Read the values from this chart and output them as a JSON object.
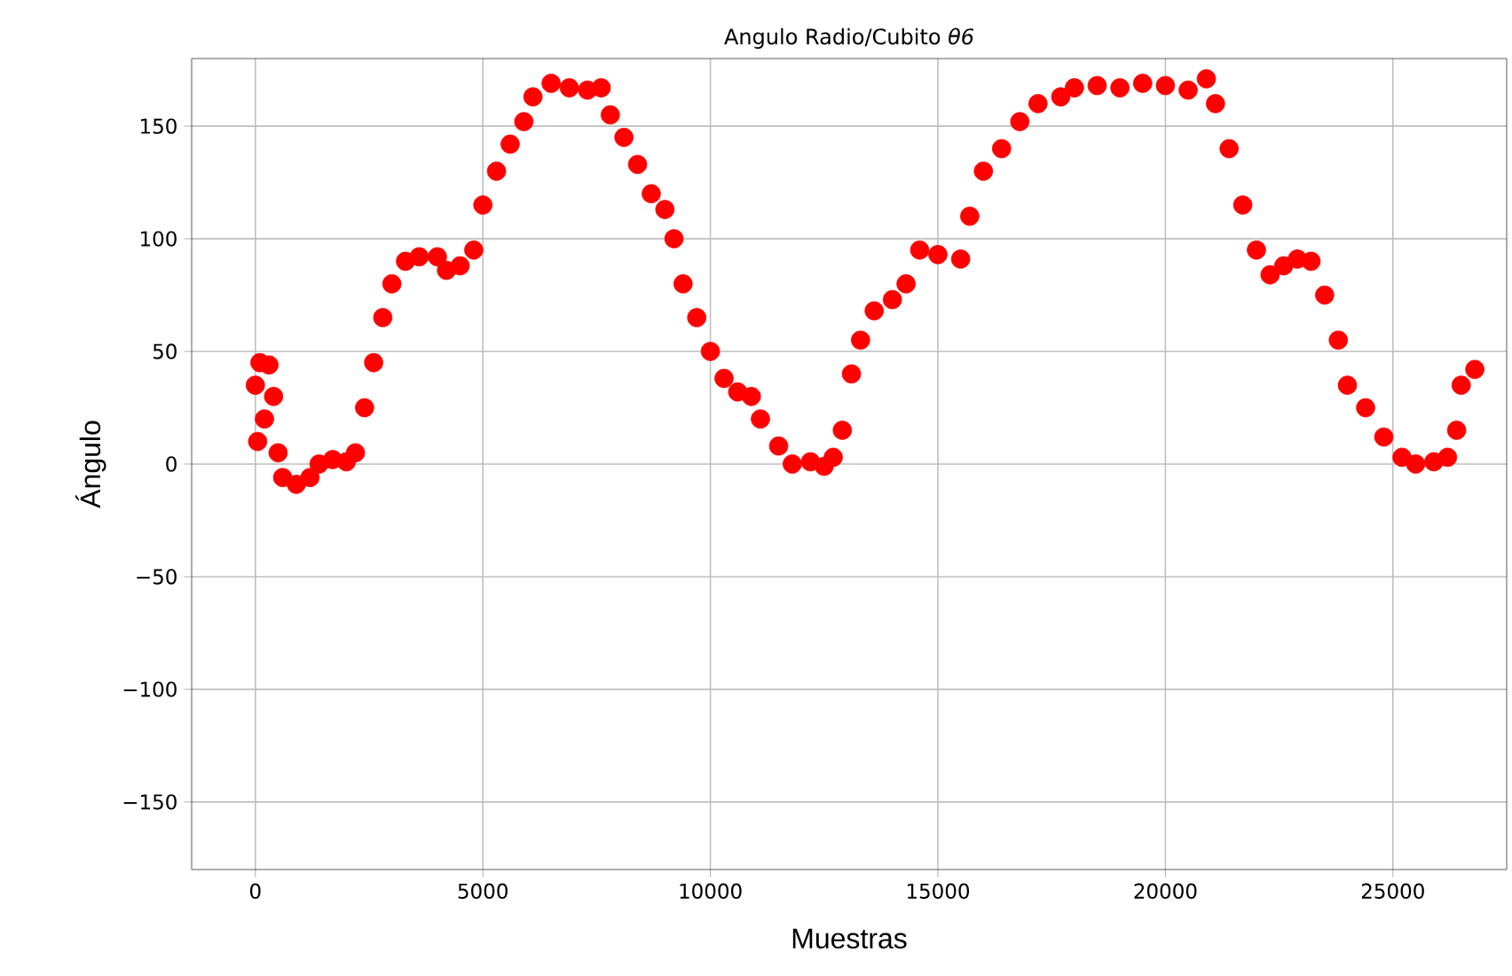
{
  "chart_data": {
    "type": "scatter",
    "title": "Angulo Radio/Cubito *θ6*",
    "xlabel": "Muestras",
    "ylabel": "Ángulo",
    "xlim": [
      -1400,
      27500
    ],
    "ylim": [
      -180,
      180
    ],
    "xticks": [
      0,
      5000,
      10000,
      15000,
      20000,
      25000
    ],
    "yticks": [
      {
        "value": -150,
        "label": "−150"
      },
      {
        "value": -100,
        "label": "−100"
      },
      {
        "value": -50,
        "label": "−50"
      },
      0,
      50,
      100,
      150
    ],
    "grid": true,
    "series": [
      {
        "color": "#ff0000",
        "x": [
          0,
          50,
          100,
          200,
          300,
          400,
          500,
          600,
          900,
          1200,
          1400,
          1700,
          2000,
          2200,
          2400,
          2600,
          2800,
          3000,
          3300,
          3600,
          4000,
          4200,
          4500,
          4800,
          5000,
          5300,
          5600,
          5900,
          6100,
          6500,
          6900,
          7300,
          7600,
          7800,
          8100,
          8400,
          8700,
          9000,
          9200,
          9400,
          9700,
          10000,
          10300,
          10600,
          10900,
          11100,
          11500,
          11800,
          12200,
          12500,
          12700,
          12900,
          13100,
          13300,
          13600,
          14000,
          14300,
          14600,
          15000,
          15500,
          15700,
          16000,
          16400,
          16800,
          17200,
          17700,
          18000,
          18500,
          19000,
          19500,
          20000,
          20500,
          20900,
          21100,
          21400,
          21700,
          22000,
          22300,
          22600,
          22900,
          23200,
          23500,
          23800,
          24000,
          24400,
          24800,
          25200,
          25500,
          25900,
          26200,
          26400,
          26500,
          26800
        ],
        "values": [
          35,
          10,
          45,
          20,
          44,
          30,
          5,
          -6,
          -9,
          -6,
          0,
          2,
          1,
          5,
          25,
          45,
          65,
          80,
          90,
          92,
          92,
          86,
          88,
          95,
          115,
          130,
          142,
          152,
          163,
          169,
          167,
          166,
          167,
          155,
          145,
          133,
          120,
          113,
          100,
          80,
          65,
          50,
          38,
          32,
          30,
          20,
          8,
          0,
          1,
          -1,
          3,
          15,
          40,
          55,
          68,
          73,
          80,
          95,
          93,
          91,
          110,
          130,
          140,
          152,
          160,
          163,
          167,
          168,
          167,
          169,
          168,
          166,
          171,
          160,
          140,
          115,
          95,
          84,
          88,
          91,
          90,
          75,
          55,
          35,
          25,
          12,
          3,
          0,
          1,
          3,
          15,
          35,
          42
        ]
      }
    ]
  }
}
